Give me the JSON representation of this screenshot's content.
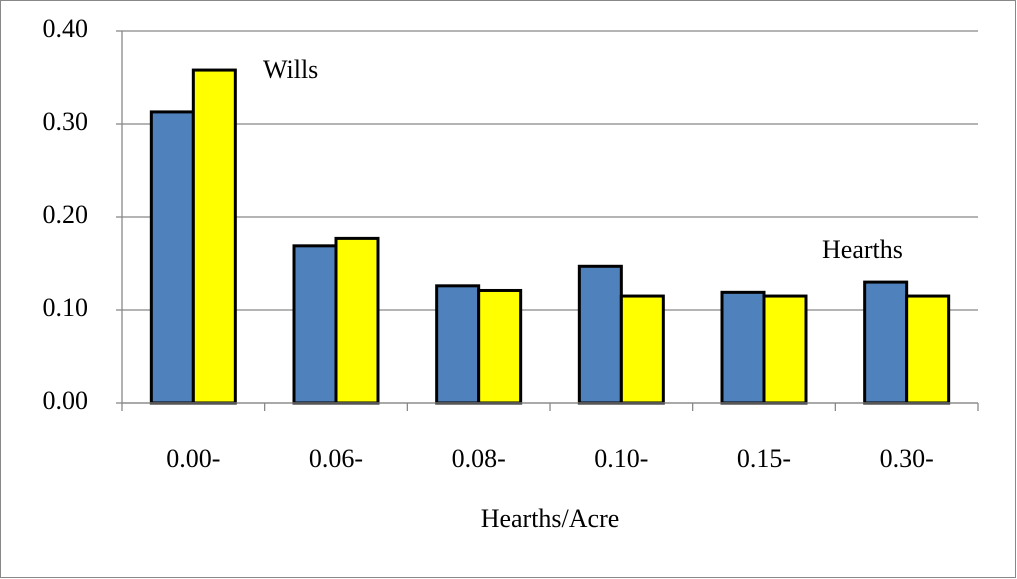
{
  "chart_data": {
    "type": "bar",
    "x_label": "Hearths/Acre",
    "categories": [
      "0.00-",
      "0.06-",
      "0.08-",
      "0.10-",
      "0.15-",
      "0.30-"
    ],
    "series": [
      {
        "name": "Hearths",
        "color": "#4f81bd",
        "values": [
          0.313,
          0.169,
          0.126,
          0.147,
          0.119,
          0.13
        ]
      },
      {
        "name": "Wills",
        "color": "#ffff00",
        "values": [
          0.358,
          0.177,
          0.121,
          0.115,
          0.115,
          0.115
        ]
      }
    ],
    "ylim": [
      0,
      0.4
    ],
    "yticks": [
      {
        "value": 0,
        "label": "0.00"
      },
      {
        "value": 0.1,
        "label": "0.10"
      },
      {
        "value": 0.2,
        "label": "0.20"
      },
      {
        "value": 0.3,
        "label": "0.30"
      },
      {
        "value": 0.4,
        "label": "0.40"
      }
    ],
    "grid": true
  }
}
